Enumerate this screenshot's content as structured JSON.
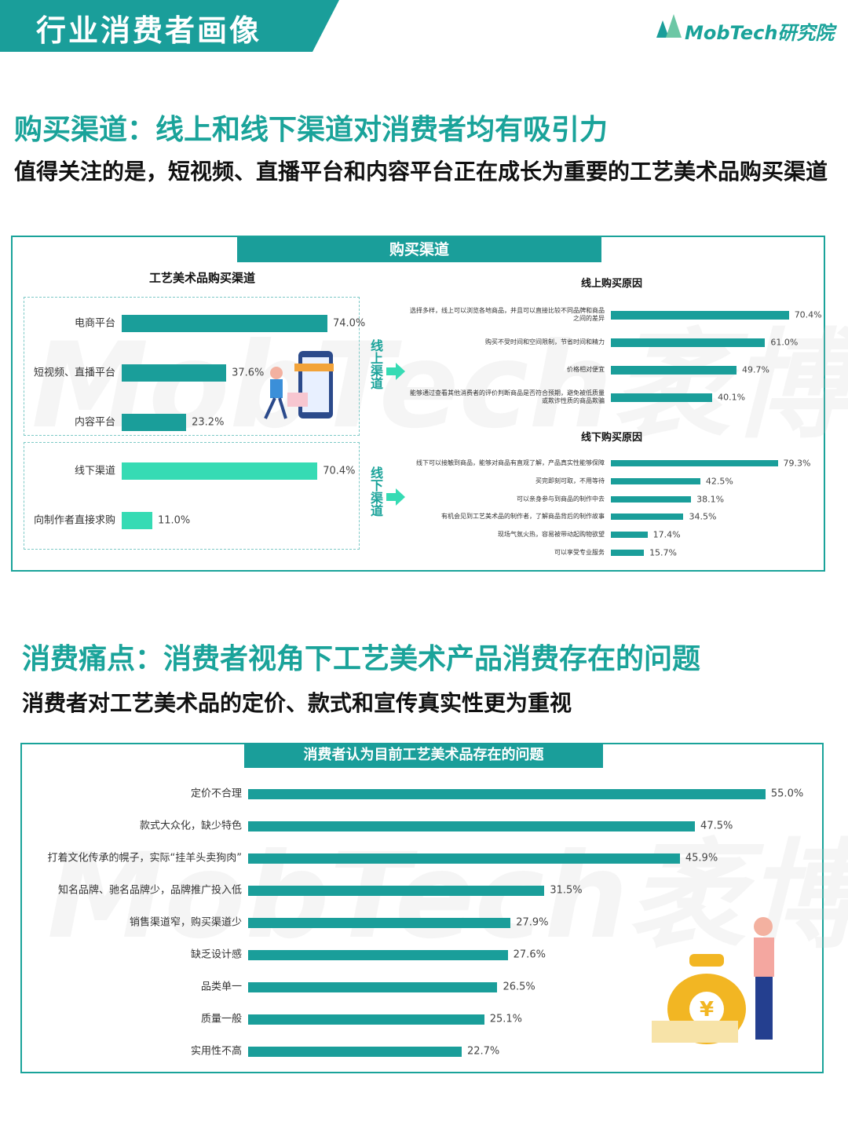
{
  "header": {
    "title": "行业消费者画像",
    "logo": "MobTech研究院"
  },
  "watermark": "MobTech袤博",
  "section1": {
    "heading": "购买渠道：线上和线下渠道对消费者均有吸引力",
    "subheading": "值得关注的是，短视频、直播平台和内容平台正在成长为重要的工艺美术品购买渠道",
    "panel_title": "购买渠道",
    "channels": {
      "title": "工艺美术品购买渠道",
      "online_label": "线上渠道",
      "offline_label": "线下渠道",
      "online": {
        "type": "bar",
        "categories": [
          "电商平台",
          "短视频、直播平台",
          "内容平台"
        ],
        "values": [
          74.0,
          37.6,
          23.2
        ],
        "value_labels": [
          "74.0%",
          "37.6%",
          "23.2%"
        ],
        "color": "#1a9e9a"
      },
      "offline": {
        "type": "bar",
        "categories": [
          "线下渠道",
          "向制作者直接求购"
        ],
        "values": [
          70.4,
          11.0
        ],
        "value_labels": [
          "70.4%",
          "11.0%"
        ],
        "color": "#36dbb4"
      }
    },
    "online_reasons": {
      "type": "bar",
      "title": "线上购买原因",
      "categories": [
        "选择多样，线上可以浏览各地商品，并且可以直接比较不同品牌和商品之间的差异",
        "购买不受时间和空间限制，节省时间和精力",
        "价格相对便宜",
        "能够通过查看其他消费者的评价判断商品是否符合预期，避免被低质量或欺诈性质的商品欺骗"
      ],
      "values": [
        70.4,
        61.0,
        49.7,
        40.1
      ],
      "value_labels": [
        "70.4%",
        "61.0%",
        "49.7%",
        "40.1%"
      ],
      "color": "#1a9e9a"
    },
    "offline_reasons": {
      "type": "bar",
      "title": "线下购买原因",
      "categories": [
        "线下可以接触到商品，能够对商品有直观了解，产品真实性能够保障",
        "买完即刻可取，不用等待",
        "可以亲身参与到商品的制作中去",
        "有机会见到工艺美术品的制作者，了解商品背后的制作故事",
        "现场气氛火热，容易被带动起购物欲望",
        "可以享受专业服务"
      ],
      "values": [
        79.3,
        42.5,
        38.1,
        34.5,
        17.4,
        15.7
      ],
      "value_labels": [
        "79.3%",
        "42.5%",
        "38.1%",
        "34.5%",
        "17.4%",
        "15.7%"
      ],
      "color": "#1a9e9a"
    }
  },
  "section2": {
    "heading": "消费痛点：消费者视角下工艺美术产品消费存在的问题",
    "subheading": "消费者对工艺美术品的定价、款式和宣传真实性更为重视",
    "problems": {
      "type": "bar",
      "title": "消费者认为目前工艺美术品存在的问题",
      "categories": [
        "定价不合理",
        "款式大众化，缺少特色",
        "打着文化传承的幌子，实际“挂羊头卖狗肉”",
        "知名品牌、驰名品牌少，品牌推广投入低",
        "销售渠道窄，购买渠道少",
        "缺乏设计感",
        "品类单一",
        "质量一般",
        "实用性不高"
      ],
      "values": [
        55.0,
        47.5,
        45.9,
        31.5,
        27.9,
        27.6,
        26.5,
        25.1,
        22.7
      ],
      "value_labels": [
        "55.0%",
        "47.5%",
        "45.9%",
        "31.5%",
        "27.9%",
        "27.6%",
        "26.5%",
        "25.1%",
        "22.7%"
      ],
      "color": "#1a9e9a"
    }
  }
}
